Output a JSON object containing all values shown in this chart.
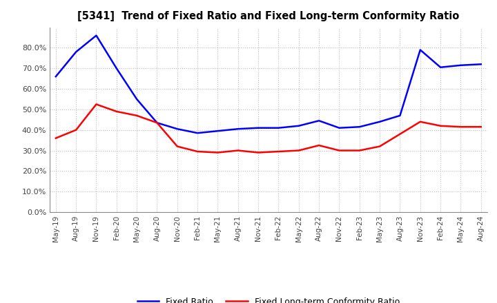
{
  "title": "[5341]  Trend of Fixed Ratio and Fixed Long-term Conformity Ratio",
  "x_labels": [
    "May-19",
    "Aug-19",
    "Nov-19",
    "Feb-20",
    "May-20",
    "Aug-20",
    "Nov-20",
    "Feb-21",
    "May-21",
    "Aug-21",
    "Nov-21",
    "Feb-22",
    "May-22",
    "Aug-22",
    "Nov-22",
    "Feb-23",
    "May-23",
    "Aug-23",
    "Nov-23",
    "Feb-24",
    "May-24",
    "Aug-24"
  ],
  "fixed_ratio": [
    66.0,
    78.0,
    86.0,
    70.0,
    55.0,
    43.5,
    40.5,
    38.5,
    39.5,
    40.5,
    41.0,
    41.0,
    42.0,
    44.5,
    41.0,
    41.5,
    44.0,
    47.0,
    79.0,
    70.5,
    71.5,
    72.0
  ],
  "fixed_lt_ratio": [
    36.0,
    40.0,
    52.5,
    49.0,
    47.0,
    43.5,
    32.0,
    29.5,
    29.0,
    30.0,
    29.0,
    29.5,
    30.0,
    32.5,
    30.0,
    30.0,
    32.0,
    38.0,
    44.0,
    42.0,
    41.5,
    41.5
  ],
  "fixed_ratio_color": "#0000FF",
  "fixed_lt_ratio_color": "#FF0000",
  "background_color": "#FFFFFF",
  "grid_color": "#AAAAAA",
  "ylim": [
    0,
    90
  ],
  "yticks": [
    0,
    10,
    20,
    30,
    40,
    50,
    60,
    70,
    80
  ],
  "legend_fixed": "Fixed Ratio",
  "legend_lt": "Fixed Long-term Conformity Ratio"
}
